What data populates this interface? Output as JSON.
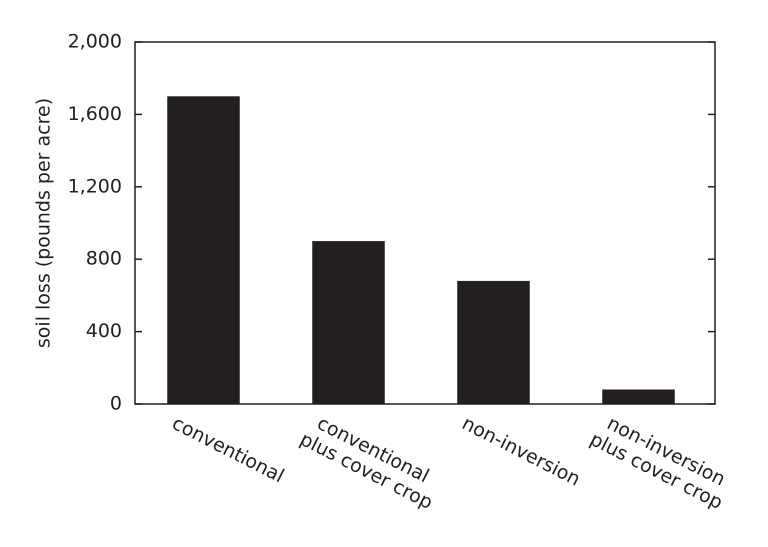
{
  "chart_data": {
    "type": "bar",
    "y_label": "soil loss (pounds per acre)",
    "categories": [
      [
        "conventional"
      ],
      [
        "conventional",
        "plus cover crop"
      ],
      [
        "non-inversion"
      ],
      [
        "non-inversion",
        "plus cover crop"
      ]
    ],
    "values": [
      1700,
      900,
      680,
      80
    ],
    "color": "#231f20",
    "ylim": [
      0,
      2000
    ],
    "yticks": [
      0,
      400,
      800,
      {
        "value": 1200,
        "label": "1,200"
      },
      {
        "value": 1600,
        "label": "1,600"
      },
      {
        "value": 2000,
        "label": "2,000"
      }
    ]
  }
}
